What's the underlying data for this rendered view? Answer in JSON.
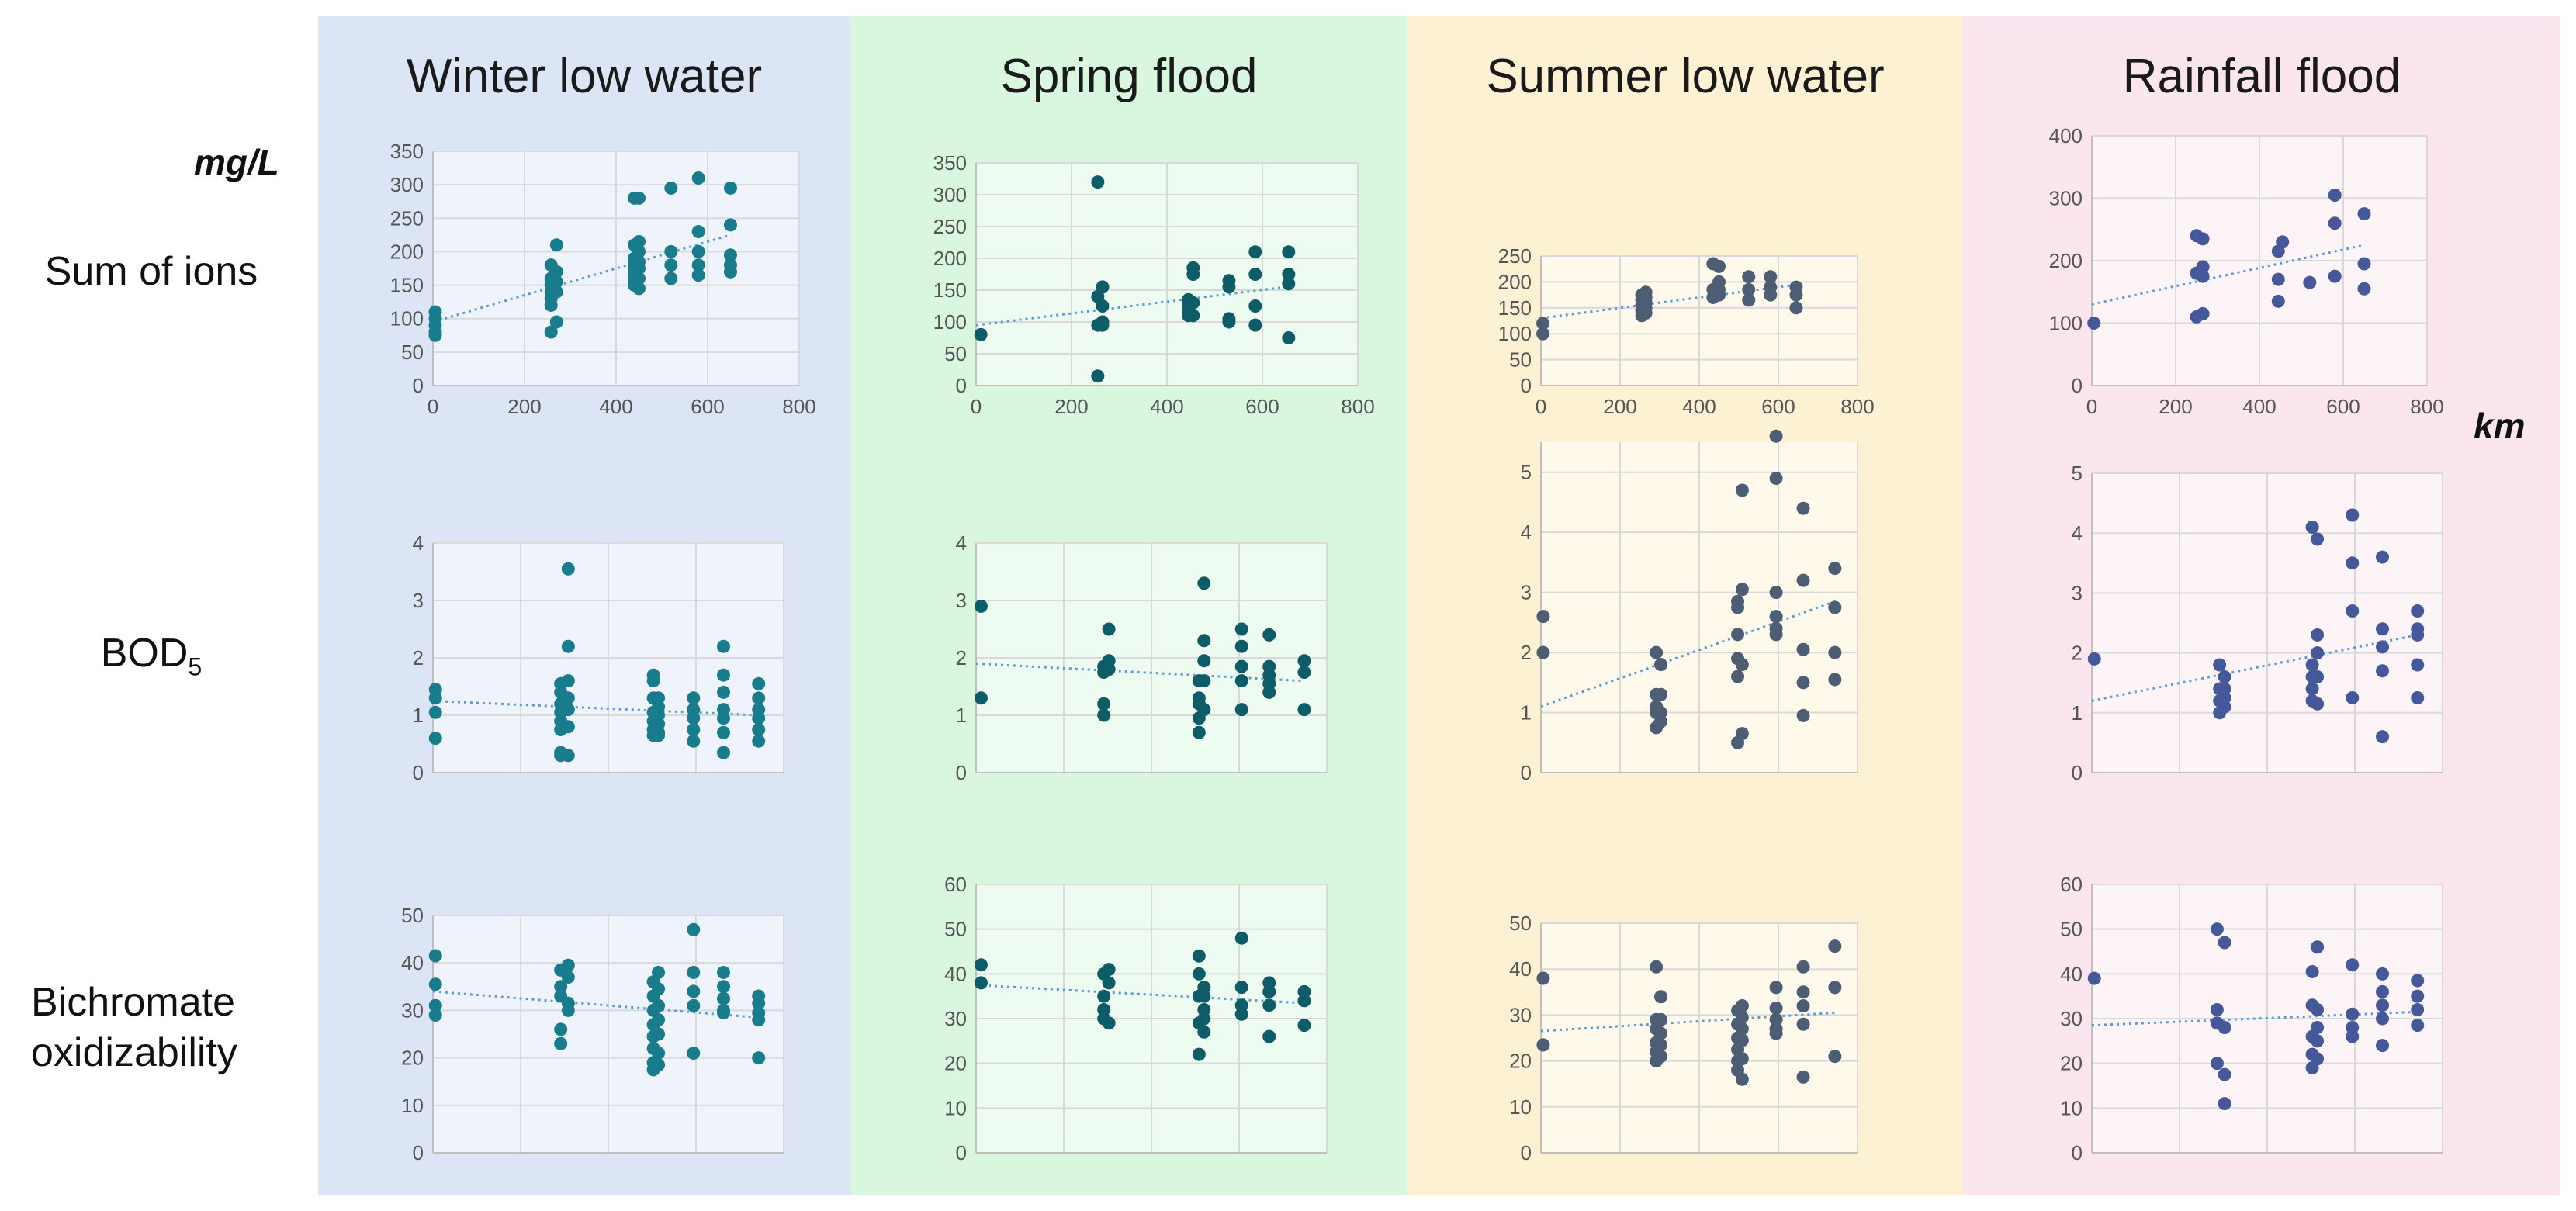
{
  "seasons": [
    {
      "name": "Winter low water",
      "bg": "#dbe5f5",
      "point_color": "#197c8d"
    },
    {
      "name": "Spring flood",
      "bg": "#d9f7df",
      "point_color": "#0d5c68"
    },
    {
      "name": "Summer low water",
      "bg": "#fcf1d2",
      "point_color": "#4d5d73"
    },
    {
      "name": "Rainfall flood",
      "bg": "#fbe6f0",
      "point_color": "#45599a"
    }
  ],
  "row_labels": {
    "ions": "Sum of ions",
    "bod_main": "BOD",
    "bod_sub": "5",
    "bichromate": "Bichromate oxidizability"
  },
  "units": {
    "y": "mg/L",
    "x": "km"
  },
  "colors": {
    "trend": "#5b9bd5",
    "grid": "#d9d9d9",
    "axis": "#bfbfbf"
  },
  "chart_data": [
    {
      "type": "scatter",
      "season": "Winter low water",
      "row": "Sum of ions",
      "xlim": [
        0,
        800
      ],
      "ylim": [
        0,
        350
      ],
      "yticks": [
        0,
        50,
        100,
        150,
        200,
        250,
        300,
        350
      ],
      "xticks": [
        0,
        200,
        400,
        600,
        800
      ],
      "x": [
        5,
        5,
        5,
        5,
        5,
        258,
        258,
        258,
        258,
        258,
        258,
        258,
        270,
        270,
        270,
        270,
        270,
        440,
        440,
        440,
        440,
        440,
        440,
        440,
        450,
        450,
        450,
        450,
        450,
        450,
        450,
        520,
        520,
        520,
        520,
        580,
        580,
        580,
        580,
        580,
        650,
        650,
        650,
        650,
        650
      ],
      "y": [
        110,
        100,
        90,
        80,
        75,
        180,
        160,
        150,
        140,
        130,
        120,
        80,
        210,
        170,
        155,
        140,
        95,
        280,
        210,
        190,
        180,
        170,
        160,
        150,
        280,
        215,
        200,
        185,
        175,
        160,
        145,
        295,
        200,
        180,
        160,
        310,
        230,
        200,
        180,
        165,
        295,
        240,
        195,
        180,
        170
      ],
      "trend": [
        [
          0,
          95
        ],
        [
          650,
          225
        ]
      ]
    },
    {
      "type": "scatter",
      "season": "Spring flood",
      "row": "Sum of ions",
      "xlim": [
        0,
        800
      ],
      "ylim": [
        0,
        350
      ],
      "yticks": [
        0,
        50,
        100,
        150,
        200,
        250,
        300,
        350
      ],
      "xticks": [
        0,
        200,
        400,
        600,
        800
      ],
      "x": [
        10,
        255,
        255,
        255,
        255,
        265,
        265,
        265,
        265,
        445,
        445,
        445,
        445,
        455,
        455,
        455,
        455,
        530,
        530,
        530,
        530,
        585,
        585,
        585,
        585,
        655,
        655,
        655,
        655
      ],
      "y": [
        80,
        320,
        140,
        95,
        15,
        155,
        125,
        100,
        95,
        135,
        125,
        115,
        110,
        185,
        175,
        130,
        110,
        165,
        155,
        105,
        100,
        210,
        175,
        125,
        95,
        210,
        175,
        160,
        75
      ],
      "trend": [
        [
          0,
          95
        ],
        [
          650,
          155
        ]
      ]
    },
    {
      "type": "scatter",
      "season": "Summer low water",
      "row": "Sum of ions",
      "xlim": [
        0,
        800
      ],
      "ylim": [
        0,
        250
      ],
      "yticks": [
        0,
        50,
        100,
        150,
        200,
        250
      ],
      "xticks": [
        0,
        200,
        400,
        600,
        800
      ],
      "x": [
        5,
        5,
        255,
        255,
        255,
        255,
        255,
        265,
        265,
        265,
        265,
        265,
        435,
        435,
        435,
        450,
        450,
        450,
        450,
        525,
        525,
        525,
        580,
        580,
        580,
        645,
        645,
        645
      ],
      "y": [
        120,
        100,
        175,
        165,
        155,
        145,
        135,
        180,
        170,
        160,
        150,
        140,
        235,
        185,
        170,
        230,
        200,
        185,
        175,
        210,
        185,
        165,
        210,
        190,
        175,
        190,
        175,
        150
      ],
      "trend": [
        [
          0,
          130
        ],
        [
          650,
          195
        ]
      ]
    },
    {
      "type": "scatter",
      "season": "Rainfall flood",
      "row": "Sum of ions",
      "xlim": [
        0,
        800
      ],
      "ylim": [
        0,
        400
      ],
      "yticks": [
        0,
        100,
        200,
        300,
        400
      ],
      "xticks": [
        0,
        200,
        400,
        600,
        800
      ],
      "x": [
        5,
        250,
        250,
        250,
        265,
        265,
        265,
        265,
        445,
        445,
        445,
        455,
        520,
        580,
        580,
        580,
        650,
        650,
        650
      ],
      "y": [
        100,
        240,
        180,
        110,
        235,
        190,
        175,
        115,
        215,
        170,
        135,
        230,
        165,
        305,
        260,
        175,
        275,
        195,
        155
      ],
      "trend": [
        [
          0,
          130
        ],
        [
          650,
          225
        ]
      ]
    },
    {
      "type": "scatter",
      "season": "Winter low water",
      "row": "BOD5",
      "xlim": [
        0,
        700
      ],
      "ylim": [
        0,
        4
      ],
      "yticks": [
        0,
        1,
        2,
        3,
        4
      ],
      "xticks": [],
      "x": [
        5,
        5,
        5,
        5,
        255,
        255,
        255,
        255,
        255,
        255,
        255,
        255,
        270,
        270,
        270,
        270,
        270,
        270,
        270,
        440,
        440,
        440,
        440,
        440,
        440,
        440,
        450,
        450,
        450,
        450,
        450,
        450,
        520,
        520,
        520,
        520,
        520,
        580,
        580,
        580,
        580,
        580,
        580,
        580,
        650,
        650,
        650,
        650,
        650,
        650
      ],
      "y": [
        1.45,
        1.3,
        1.05,
        0.6,
        1.55,
        1.4,
        1.2,
        1.05,
        0.9,
        0.75,
        0.35,
        0.3,
        3.55,
        2.2,
        1.6,
        1.3,
        1.1,
        0.8,
        0.3,
        1.7,
        1.6,
        1.3,
        1.05,
        0.9,
        0.75,
        0.65,
        1.3,
        1.15,
        1.0,
        0.85,
        0.7,
        0.65,
        1.3,
        1.1,
        0.95,
        0.75,
        0.55,
        2.2,
        1.7,
        1.4,
        1.1,
        0.95,
        0.7,
        0.35,
        1.55,
        1.3,
        1.1,
        0.95,
        0.75,
        0.55
      ],
      "trend": [
        [
          0,
          1.25
        ],
        [
          650,
          1.0
        ]
      ]
    },
    {
      "type": "scatter",
      "season": "Spring flood",
      "row": "BOD5",
      "xlim": [
        0,
        700
      ],
      "ylim": [
        0,
        4
      ],
      "yticks": [
        0,
        1,
        2,
        3,
        4
      ],
      "xticks": [],
      "x": [
        10,
        10,
        255,
        255,
        255,
        255,
        265,
        265,
        265,
        445,
        445,
        445,
        445,
        445,
        455,
        455,
        455,
        455,
        455,
        530,
        530,
        530,
        530,
        530,
        585,
        585,
        585,
        585,
        585,
        655,
        655,
        655
      ],
      "y": [
        2.9,
        1.3,
        1.85,
        1.75,
        1.2,
        1.0,
        2.5,
        1.95,
        1.8,
        1.6,
        1.3,
        1.2,
        0.95,
        0.7,
        3.3,
        2.3,
        1.95,
        1.6,
        1.1,
        2.5,
        2.2,
        1.85,
        1.6,
        1.1,
        2.4,
        1.85,
        1.7,
        1.55,
        1.4,
        1.95,
        1.75,
        1.1
      ],
      "trend": [
        [
          0,
          1.9
        ],
        [
          650,
          1.6
        ]
      ]
    },
    {
      "type": "scatter",
      "season": "Summer low water",
      "row": "BOD5",
      "xlim": [
        0,
        700
      ],
      "ylim": [
        0,
        5.5
      ],
      "yticks": [
        0,
        1,
        2,
        3,
        4,
        5
      ],
      "xticks": [],
      "x": [
        5,
        5,
        255,
        255,
        255,
        255,
        255,
        265,
        265,
        265,
        265,
        435,
        435,
        435,
        435,
        435,
        435,
        445,
        445,
        445,
        445,
        520,
        520,
        520,
        520,
        520,
        520,
        580,
        580,
        580,
        580,
        580,
        650,
        650,
        650,
        650
      ],
      "y": [
        2.6,
        2.0,
        2.0,
        1.3,
        1.1,
        1.0,
        0.75,
        1.8,
        1.3,
        1.0,
        0.85,
        2.85,
        2.75,
        2.3,
        1.9,
        1.6,
        0.5,
        4.7,
        3.05,
        1.8,
        0.65,
        5.6,
        4.9,
        3.0,
        2.6,
        2.4,
        2.3,
        4.4,
        3.2,
        2.05,
        1.5,
        0.95,
        3.4,
        2.75,
        2.0,
        1.55
      ],
      "trend": [
        [
          0,
          1.1
        ],
        [
          650,
          2.85
        ]
      ]
    },
    {
      "type": "scatter",
      "season": "Rainfall flood",
      "row": "BOD5",
      "xlim": [
        0,
        700
      ],
      "ylim": [
        0,
        5
      ],
      "yticks": [
        0,
        1,
        2,
        3,
        4,
        5
      ],
      "xticks": [],
      "x": [
        5,
        255,
        255,
        255,
        255,
        265,
        265,
        265,
        265,
        440,
        440,
        440,
        440,
        440,
        450,
        450,
        450,
        450,
        450,
        520,
        520,
        520,
        520,
        580,
        580,
        580,
        580,
        580,
        650,
        650,
        650,
        650,
        650
      ],
      "y": [
        1.9,
        1.8,
        1.4,
        1.2,
        1.0,
        1.6,
        1.4,
        1.25,
        1.1,
        4.1,
        1.8,
        1.6,
        1.4,
        1.2,
        3.9,
        2.3,
        2.0,
        1.6,
        1.15,
        4.3,
        3.5,
        2.7,
        1.25,
        3.6,
        2.4,
        2.1,
        1.7,
        0.6,
        2.7,
        2.4,
        2.3,
        1.8,
        1.25
      ],
      "trend": [
        [
          0,
          1.2
        ],
        [
          650,
          2.3
        ]
      ]
    },
    {
      "type": "scatter",
      "season": "Winter low water",
      "row": "Bichromate oxidizability",
      "xlim": [
        0,
        700
      ],
      "ylim": [
        0,
        50
      ],
      "yticks": [
        0,
        10,
        20,
        30,
        40,
        50
      ],
      "xticks": [],
      "x": [
        5,
        5,
        5,
        5,
        255,
        255,
        255,
        255,
        255,
        270,
        270,
        270,
        270,
        440,
        440,
        440,
        440,
        440,
        440,
        440,
        440,
        450,
        450,
        450,
        450,
        450,
        450,
        450,
        520,
        520,
        520,
        520,
        520,
        580,
        580,
        580,
        580,
        580,
        650,
        650,
        650,
        650,
        650
      ],
      "y": [
        41.5,
        35.5,
        31,
        29,
        38.5,
        35,
        33,
        26,
        23,
        39.5,
        37,
        31.5,
        30,
        36,
        33,
        30,
        27,
        24.5,
        22,
        19,
        17.5,
        38,
        34.5,
        31,
        28,
        25,
        21,
        18.5,
        47,
        38,
        34,
        31,
        21,
        38,
        35,
        32.5,
        30,
        29.5,
        33,
        31.5,
        29.5,
        28,
        20
      ],
      "trend": [
        [
          0,
          34
        ],
        [
          650,
          28.5
        ]
      ]
    },
    {
      "type": "scatter",
      "season": "Spring flood",
      "row": "Bichromate oxidizability",
      "xlim": [
        0,
        700
      ],
      "ylim": [
        0,
        60
      ],
      "yticks": [
        0,
        10,
        20,
        30,
        40,
        50,
        60
      ],
      "xticks": [],
      "x": [
        10,
        10,
        255,
        255,
        255,
        255,
        265,
        265,
        265,
        445,
        445,
        445,
        445,
        445,
        455,
        455,
        455,
        455,
        455,
        530,
        530,
        530,
        530,
        585,
        585,
        585,
        585,
        655,
        655,
        655
      ],
      "y": [
        42,
        38,
        40,
        35,
        32,
        30,
        41,
        38,
        29,
        44,
        40,
        35,
        29,
        22,
        37,
        35,
        32,
        30,
        27,
        48,
        37,
        33,
        31,
        38,
        36,
        33,
        26,
        36,
        34,
        28.5
      ],
      "trend": [
        [
          0,
          37.5
        ],
        [
          650,
          33.5
        ]
      ]
    },
    {
      "type": "scatter",
      "season": "Summer low water",
      "row": "Bichromate oxidizability",
      "xlim": [
        0,
        700
      ],
      "ylim": [
        0,
        50
      ],
      "yticks": [
        0,
        10,
        20,
        30,
        40,
        50
      ],
      "xticks": [],
      "x": [
        5,
        5,
        255,
        255,
        255,
        255,
        255,
        255,
        265,
        265,
        265,
        265,
        265,
        435,
        435,
        435,
        435,
        435,
        435,
        445,
        445,
        445,
        445,
        445,
        445,
        520,
        520,
        520,
        520,
        520,
        580,
        580,
        580,
        580,
        580,
        650,
        650,
        650
      ],
      "y": [
        38,
        23.5,
        40.5,
        29,
        27,
        24,
        22,
        20,
        34,
        29,
        26,
        23.5,
        21,
        31,
        28,
        25,
        22.5,
        20,
        18,
        32,
        29.5,
        27,
        24.5,
        20.5,
        16,
        36,
        31.5,
        29,
        27,
        26,
        40.5,
        35,
        32,
        28,
        16.5,
        45,
        36,
        21
      ],
      "trend": [
        [
          0,
          26.5
        ],
        [
          650,
          30.5
        ]
      ]
    },
    {
      "type": "scatter",
      "season": "Rainfall flood",
      "row": "Bichromate oxidizability",
      "xlim": [
        0,
        700
      ],
      "ylim": [
        0,
        60
      ],
      "yticks": [
        0,
        10,
        20,
        30,
        40,
        50,
        60
      ],
      "xticks": [],
      "x": [
        5,
        250,
        250,
        250,
        250,
        265,
        265,
        265,
        265,
        440,
        440,
        440,
        440,
        440,
        450,
        450,
        450,
        450,
        450,
        520,
        520,
        520,
        520,
        580,
        580,
        580,
        580,
        580,
        650,
        650,
        650,
        650
      ],
      "y": [
        39,
        50,
        32,
        29,
        20,
        47,
        28,
        17.5,
        11,
        40.5,
        33,
        26,
        22,
        19,
        46,
        32,
        28,
        25,
        21,
        42,
        31,
        28,
        26,
        40,
        36,
        33,
        30,
        24,
        38.5,
        35,
        32,
        28.5
      ],
      "trend": [
        [
          0,
          28.5
        ],
        [
          650,
          31.5
        ]
      ]
    }
  ]
}
